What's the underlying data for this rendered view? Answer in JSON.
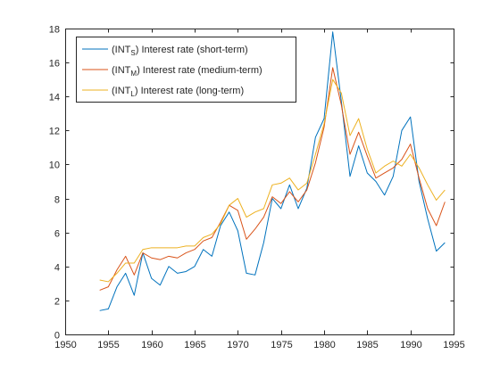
{
  "colors": {
    "background": "#ffffff",
    "axes": "#262626",
    "short": "#0072BD",
    "medium": "#D95319",
    "long": "#EDB120"
  },
  "chart_data": {
    "type": "line",
    "title": "",
    "xlabel": "",
    "ylabel": "",
    "xlim": [
      1950,
      1995
    ],
    "ylim": [
      0,
      18
    ],
    "xticks": [
      1950,
      1955,
      1960,
      1965,
      1970,
      1975,
      1980,
      1985,
      1990,
      1995
    ],
    "yticks": [
      0,
      2,
      4,
      6,
      8,
      10,
      12,
      14,
      16,
      18
    ],
    "grid": false,
    "box": true,
    "legend_position": "top-left",
    "x": [
      1954,
      1955,
      1956,
      1957,
      1958,
      1959,
      1960,
      1961,
      1962,
      1963,
      1964,
      1965,
      1966,
      1967,
      1968,
      1969,
      1970,
      1971,
      1972,
      1973,
      1974,
      1975,
      1976,
      1977,
      1978,
      1979,
      1980,
      1981,
      1982,
      1983,
      1984,
      1985,
      1986,
      1987,
      1988,
      1989,
      1990,
      1991,
      1992,
      1993,
      1994
    ],
    "series": [
      {
        "key": "short",
        "legend": {
          "prefix": "(INT",
          "sub": "S",
          "suffix": ") Interest rate (short-term)"
        },
        "color": "#0072BD",
        "values": [
          1.4,
          1.5,
          2.8,
          3.6,
          2.3,
          4.8,
          3.3,
          2.9,
          4.0,
          3.6,
          3.7,
          4.0,
          5.0,
          4.6,
          6.4,
          7.2,
          6.1,
          3.6,
          3.5,
          5.4,
          8.0,
          7.4,
          8.8,
          7.4,
          8.6,
          11.6,
          12.7,
          17.8,
          13.7,
          9.3,
          11.1,
          9.5,
          9.0,
          8.2,
          9.3,
          12.0,
          12.8,
          9.0,
          6.8,
          4.9,
          5.4
        ]
      },
      {
        "key": "medium",
        "legend": {
          "prefix": "(INT",
          "sub": "M",
          "suffix": ") Interest rate (medium-term)"
        },
        "color": "#D95319",
        "values": [
          2.6,
          2.8,
          3.8,
          4.6,
          3.5,
          4.8,
          4.5,
          4.4,
          4.6,
          4.5,
          4.8,
          5.0,
          5.5,
          5.7,
          6.6,
          7.6,
          7.3,
          5.6,
          6.2,
          6.9,
          8.1,
          7.7,
          8.4,
          7.8,
          8.5,
          10.1,
          12.2,
          15.7,
          13.5,
          10.6,
          11.9,
          10.5,
          9.2,
          9.5,
          9.8,
          10.3,
          11.2,
          9.2,
          7.4,
          6.4,
          7.8
        ]
      },
      {
        "key": "long",
        "legend": {
          "prefix": "(INT",
          "sub": "L",
          "suffix": ") Interest rate (long-term)"
        },
        "color": "#EDB120",
        "values": [
          3.2,
          3.1,
          3.6,
          4.2,
          4.2,
          5.0,
          5.1,
          5.1,
          5.1,
          5.1,
          5.2,
          5.2,
          5.7,
          5.9,
          6.5,
          7.6,
          8.0,
          6.9,
          7.2,
          7.4,
          8.8,
          8.9,
          9.2,
          8.5,
          8.9,
          10.6,
          12.4,
          15.0,
          14.2,
          11.7,
          12.7,
          10.9,
          9.5,
          9.9,
          10.2,
          9.9,
          10.6,
          9.8,
          8.8,
          7.9,
          8.5
        ]
      }
    ]
  }
}
